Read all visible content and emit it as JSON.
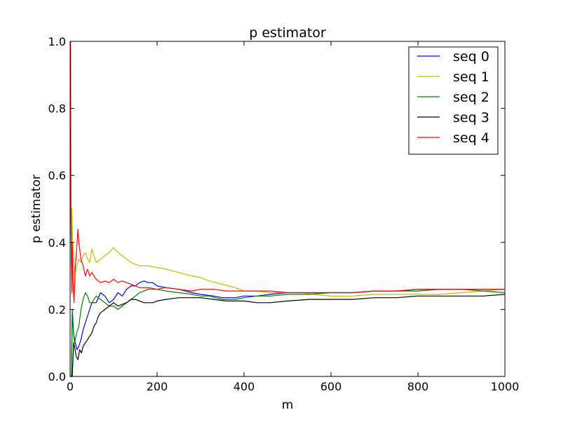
{
  "chart_data": {
    "type": "line",
    "title": "p estimator",
    "xlabel": "m",
    "ylabel": "p estimator",
    "xlim": [
      0,
      1000
    ],
    "ylim": [
      0.0,
      1.0
    ],
    "grid": false,
    "legend_position": "top-right",
    "x_ticks": [
      0,
      200,
      400,
      600,
      800,
      1000
    ],
    "x_tick_labels": [
      "0",
      "200",
      "400",
      "600",
      "800",
      "1000"
    ],
    "y_ticks": [
      0.0,
      0.2,
      0.4,
      0.6,
      0.8,
      1.0
    ],
    "y_tick_labels": [
      "0.0",
      "0.2",
      "0.4",
      "0.6",
      "0.8",
      "1.0"
    ],
    "series": [
      {
        "name": "seq 0",
        "color": "#0000ff",
        "points": [
          [
            1,
            0.0
          ],
          [
            3,
            0.0
          ],
          [
            5,
            0.2
          ],
          [
            8,
            0.125
          ],
          [
            12,
            0.1
          ],
          [
            16,
            0.08
          ],
          [
            20,
            0.09
          ],
          [
            25,
            0.11
          ],
          [
            30,
            0.14
          ],
          [
            35,
            0.16
          ],
          [
            40,
            0.18
          ],
          [
            50,
            0.22
          ],
          [
            60,
            0.22
          ],
          [
            70,
            0.25
          ],
          [
            80,
            0.24
          ],
          [
            90,
            0.22
          ],
          [
            100,
            0.23
          ],
          [
            110,
            0.25
          ],
          [
            120,
            0.24
          ],
          [
            130,
            0.26
          ],
          [
            140,
            0.27
          ],
          [
            150,
            0.27
          ],
          [
            160,
            0.28
          ],
          [
            170,
            0.285
          ],
          [
            180,
            0.28
          ],
          [
            190,
            0.28
          ],
          [
            200,
            0.27
          ],
          [
            220,
            0.265
          ],
          [
            250,
            0.26
          ],
          [
            280,
            0.25
          ],
          [
            300,
            0.245
          ],
          [
            330,
            0.24
          ],
          [
            350,
            0.235
          ],
          [
            380,
            0.235
          ],
          [
            400,
            0.24
          ],
          [
            430,
            0.24
          ],
          [
            460,
            0.245
          ],
          [
            500,
            0.25
          ],
          [
            550,
            0.25
          ],
          [
            600,
            0.25
          ],
          [
            650,
            0.25
          ],
          [
            700,
            0.255
          ],
          [
            750,
            0.255
          ],
          [
            800,
            0.26
          ],
          [
            850,
            0.26
          ],
          [
            900,
            0.26
          ],
          [
            950,
            0.26
          ],
          [
            1000,
            0.26
          ]
        ]
      },
      {
        "name": "seq 1",
        "color": "#bfbf00",
        "points": [
          [
            1,
            1.0
          ],
          [
            2,
            0.5
          ],
          [
            3,
            0.33
          ],
          [
            4,
            0.5
          ],
          [
            6,
            0.4
          ],
          [
            8,
            0.375
          ],
          [
            10,
            0.3
          ],
          [
            15,
            0.33
          ],
          [
            20,
            0.35
          ],
          [
            25,
            0.34
          ],
          [
            30,
            0.36
          ],
          [
            35,
            0.37
          ],
          [
            40,
            0.35
          ],
          [
            45,
            0.34
          ],
          [
            50,
            0.38
          ],
          [
            55,
            0.36
          ],
          [
            60,
            0.34
          ],
          [
            70,
            0.35
          ],
          [
            80,
            0.36
          ],
          [
            90,
            0.37
          ],
          [
            100,
            0.385
          ],
          [
            110,
            0.37
          ],
          [
            120,
            0.36
          ],
          [
            130,
            0.35
          ],
          [
            140,
            0.34
          ],
          [
            150,
            0.335
          ],
          [
            160,
            0.33
          ],
          [
            180,
            0.33
          ],
          [
            200,
            0.325
          ],
          [
            220,
            0.32
          ],
          [
            250,
            0.31
          ],
          [
            280,
            0.3
          ],
          [
            300,
            0.295
          ],
          [
            320,
            0.285
          ],
          [
            350,
            0.275
          ],
          [
            380,
            0.265
          ],
          [
            400,
            0.255
          ],
          [
            430,
            0.255
          ],
          [
            460,
            0.25
          ],
          [
            500,
            0.25
          ],
          [
            530,
            0.25
          ],
          [
            560,
            0.245
          ],
          [
            600,
            0.24
          ],
          [
            650,
            0.24
          ],
          [
            700,
            0.245
          ],
          [
            750,
            0.245
          ],
          [
            800,
            0.245
          ],
          [
            850,
            0.245
          ],
          [
            900,
            0.25
          ],
          [
            950,
            0.255
          ],
          [
            1000,
            0.26
          ]
        ]
      },
      {
        "name": "seq 2",
        "color": "#008000",
        "points": [
          [
            1,
            0.0
          ],
          [
            3,
            0.0
          ],
          [
            5,
            0.2
          ],
          [
            8,
            0.125
          ],
          [
            10,
            0.1
          ],
          [
            15,
            0.13
          ],
          [
            20,
            0.15
          ],
          [
            25,
            0.2
          ],
          [
            30,
            0.23
          ],
          [
            35,
            0.25
          ],
          [
            40,
            0.24
          ],
          [
            45,
            0.22
          ],
          [
            50,
            0.22
          ],
          [
            60,
            0.24
          ],
          [
            70,
            0.23
          ],
          [
            80,
            0.22
          ],
          [
            90,
            0.21
          ],
          [
            100,
            0.21
          ],
          [
            110,
            0.2
          ],
          [
            120,
            0.21
          ],
          [
            130,
            0.22
          ],
          [
            140,
            0.23
          ],
          [
            150,
            0.24
          ],
          [
            160,
            0.25
          ],
          [
            170,
            0.255
          ],
          [
            180,
            0.26
          ],
          [
            190,
            0.26
          ],
          [
            200,
            0.26
          ],
          [
            220,
            0.255
          ],
          [
            250,
            0.25
          ],
          [
            280,
            0.245
          ],
          [
            300,
            0.24
          ],
          [
            320,
            0.24
          ],
          [
            350,
            0.23
          ],
          [
            380,
            0.23
          ],
          [
            400,
            0.235
          ],
          [
            430,
            0.24
          ],
          [
            460,
            0.24
          ],
          [
            500,
            0.245
          ],
          [
            550,
            0.245
          ],
          [
            600,
            0.25
          ],
          [
            650,
            0.25
          ],
          [
            700,
            0.255
          ],
          [
            750,
            0.255
          ],
          [
            800,
            0.255
          ],
          [
            850,
            0.26
          ],
          [
            900,
            0.26
          ],
          [
            950,
            0.255
          ],
          [
            1000,
            0.25
          ]
        ]
      },
      {
        "name": "seq 3",
        "color": "#000000",
        "points": [
          [
            1,
            0.0
          ],
          [
            3,
            0.0
          ],
          [
            5,
            0.0
          ],
          [
            8,
            0.1
          ],
          [
            10,
            0.09
          ],
          [
            14,
            0.06
          ],
          [
            18,
            0.05
          ],
          [
            22,
            0.08
          ],
          [
            26,
            0.07
          ],
          [
            30,
            0.09
          ],
          [
            35,
            0.1
          ],
          [
            40,
            0.11
          ],
          [
            45,
            0.12
          ],
          [
            50,
            0.13
          ],
          [
            55,
            0.15
          ],
          [
            60,
            0.16
          ],
          [
            65,
            0.18
          ],
          [
            70,
            0.19
          ],
          [
            80,
            0.2
          ],
          [
            90,
            0.21
          ],
          [
            100,
            0.22
          ],
          [
            110,
            0.21
          ],
          [
            120,
            0.215
          ],
          [
            130,
            0.22
          ],
          [
            140,
            0.23
          ],
          [
            150,
            0.23
          ],
          [
            160,
            0.225
          ],
          [
            170,
            0.22
          ],
          [
            180,
            0.22
          ],
          [
            190,
            0.22
          ],
          [
            200,
            0.225
          ],
          [
            220,
            0.23
          ],
          [
            250,
            0.235
          ],
          [
            280,
            0.235
          ],
          [
            300,
            0.235
          ],
          [
            330,
            0.23
          ],
          [
            360,
            0.225
          ],
          [
            400,
            0.225
          ],
          [
            430,
            0.22
          ],
          [
            460,
            0.22
          ],
          [
            500,
            0.225
          ],
          [
            550,
            0.23
          ],
          [
            600,
            0.23
          ],
          [
            650,
            0.23
          ],
          [
            700,
            0.235
          ],
          [
            750,
            0.235
          ],
          [
            800,
            0.24
          ],
          [
            850,
            0.24
          ],
          [
            900,
            0.24
          ],
          [
            950,
            0.24
          ],
          [
            1000,
            0.245
          ]
        ]
      },
      {
        "name": "seq 4",
        "color": "#ff0000",
        "points": [
          [
            1,
            1.0
          ],
          [
            2,
            0.5
          ],
          [
            3,
            0.33
          ],
          [
            4,
            0.25
          ],
          [
            5,
            0.4
          ],
          [
            7,
            0.28
          ],
          [
            9,
            0.22
          ],
          [
            12,
            0.33
          ],
          [
            15,
            0.38
          ],
          [
            18,
            0.44
          ],
          [
            20,
            0.4
          ],
          [
            25,
            0.35
          ],
          [
            30,
            0.33
          ],
          [
            35,
            0.3
          ],
          [
            40,
            0.32
          ],
          [
            45,
            0.3
          ],
          [
            50,
            0.31
          ],
          [
            60,
            0.29
          ],
          [
            70,
            0.28
          ],
          [
            80,
            0.285
          ],
          [
            90,
            0.28
          ],
          [
            100,
            0.29
          ],
          [
            110,
            0.28
          ],
          [
            120,
            0.285
          ],
          [
            130,
            0.28
          ],
          [
            140,
            0.275
          ],
          [
            150,
            0.27
          ],
          [
            160,
            0.265
          ],
          [
            180,
            0.265
          ],
          [
            200,
            0.26
          ],
          [
            220,
            0.265
          ],
          [
            250,
            0.26
          ],
          [
            280,
            0.255
          ],
          [
            300,
            0.26
          ],
          [
            330,
            0.26
          ],
          [
            360,
            0.255
          ],
          [
            400,
            0.255
          ],
          [
            430,
            0.255
          ],
          [
            460,
            0.255
          ],
          [
            500,
            0.25
          ],
          [
            550,
            0.25
          ],
          [
            600,
            0.25
          ],
          [
            650,
            0.25
          ],
          [
            700,
            0.255
          ],
          [
            750,
            0.255
          ],
          [
            800,
            0.26
          ],
          [
            850,
            0.26
          ],
          [
            900,
            0.26
          ],
          [
            950,
            0.26
          ],
          [
            1000,
            0.26
          ]
        ]
      }
    ]
  }
}
